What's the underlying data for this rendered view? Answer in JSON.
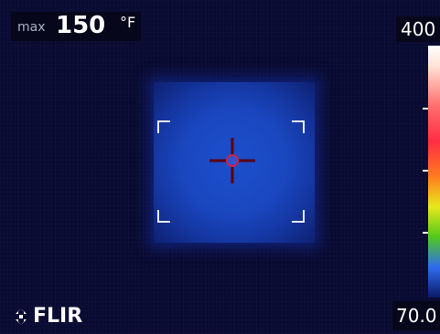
{
  "measurement": {
    "label": "max",
    "value": "150",
    "unit": "°F"
  },
  "scale": {
    "max": "400",
    "min": "70.0"
  },
  "brand": {
    "name": "FLIR"
  },
  "colors": {
    "background": "#0a0b33",
    "hotspot": "#1a47c0",
    "spot_marker": "#d02040",
    "text": "#ffffff"
  },
  "icons": [
    "flir-logo-icon",
    "crosshair-icon",
    "focus-bracket-icon"
  ]
}
